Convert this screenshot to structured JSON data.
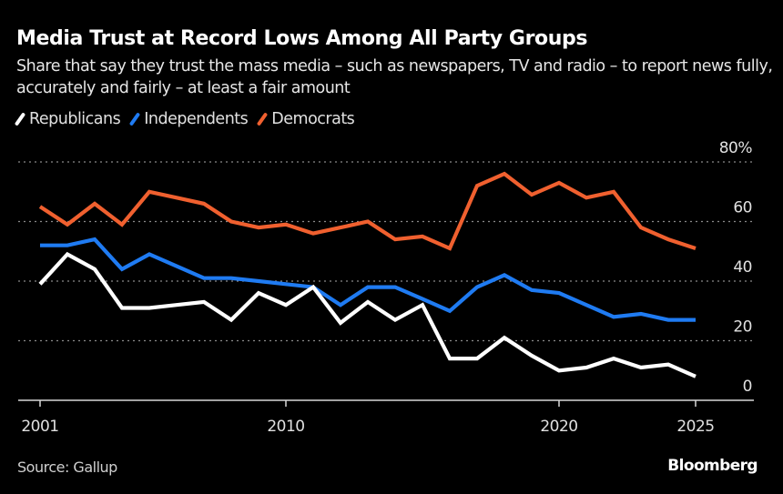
{
  "header": {
    "title": "Media Trust at Record Lows Among All Party Groups",
    "subtitle": "Share that say they trust the mass media – such as newspapers, TV and radio – to report news fully, accurately and fairly – at least a fair amount"
  },
  "footer": {
    "source": "Source: Gallup",
    "brand": "Bloomberg"
  },
  "chart_data": {
    "type": "line",
    "title": "Media Trust at Record Lows Among All Party Groups",
    "subtitle": "Share that say they trust the mass media – such as newspapers, TV and radio – to report news fully, accurately and fairly – at least a fair amount",
    "xlabel": "",
    "ylabel": "",
    "x": [
      2001,
      2002,
      2003,
      2004,
      2005,
      2006,
      2007,
      2008,
      2009,
      2010,
      2011,
      2012,
      2013,
      2014,
      2015,
      2016,
      2017,
      2018,
      2019,
      2020,
      2021,
      2022,
      2023,
      2024,
      2025
    ],
    "xlim": [
      2000,
      2027
    ],
    "ylim": [
      0,
      80
    ],
    "x_ticks": [
      2001,
      2010,
      2020,
      2025
    ],
    "x_tick_labels": [
      "2001",
      "2010",
      "2020",
      "2025"
    ],
    "y_ticks": [
      0,
      20,
      40,
      60,
      80
    ],
    "y_tick_labels": [
      "0",
      "20",
      "40",
      "60",
      "80%"
    ],
    "grid": "horizontal dotted",
    "y_axis_side": "right",
    "legend": "top-left",
    "series": [
      {
        "name": "Republicans",
        "color": "#ffffff",
        "values": [
          39,
          49,
          44,
          31,
          31,
          32,
          33,
          27,
          36,
          32,
          38,
          26,
          33,
          27,
          32,
          14,
          14,
          21,
          15,
          10,
          11,
          14,
          11,
          12,
          8
        ]
      },
      {
        "name": "Independents",
        "color": "#1f7bf2",
        "values": [
          52,
          52,
          54,
          44,
          49,
          45,
          41,
          41,
          40,
          39,
          38,
          32,
          38,
          38,
          34,
          30,
          38,
          42,
          37,
          36,
          32,
          28,
          29,
          27,
          27
        ]
      },
      {
        "name": "Democrats",
        "color": "#f0602f",
        "values": [
          65,
          59,
          66,
          59,
          70,
          68,
          66,
          60,
          58,
          59,
          56,
          58,
          60,
          54,
          55,
          51,
          72,
          76,
          69,
          73,
          68,
          70,
          58,
          54,
          51
        ]
      }
    ]
  }
}
